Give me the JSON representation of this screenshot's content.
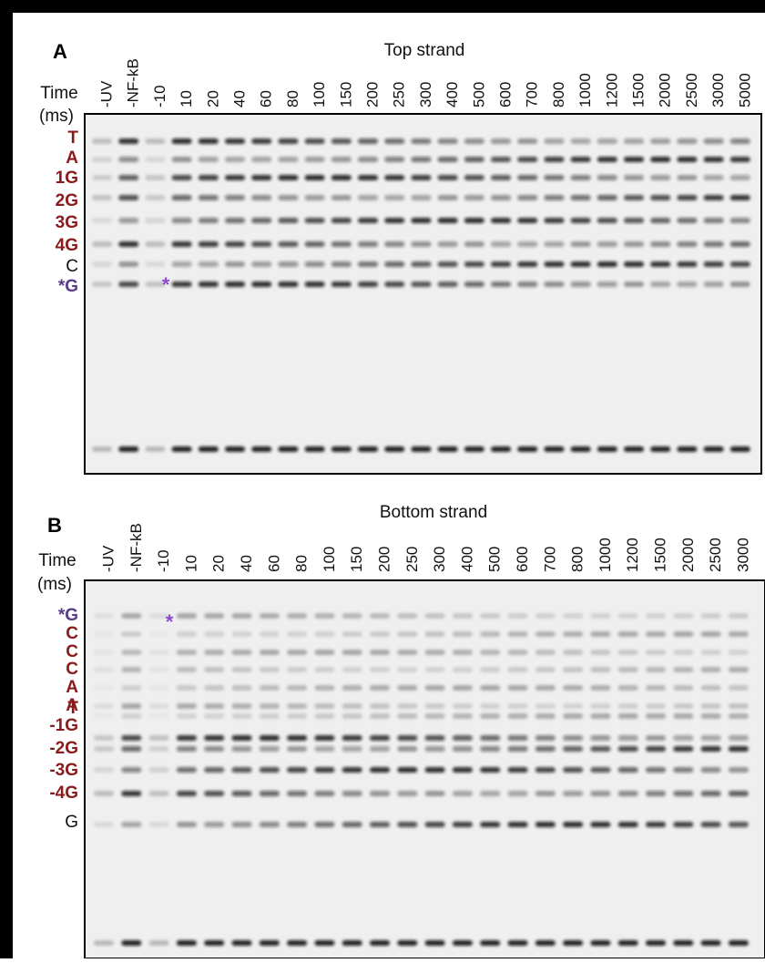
{
  "panels": [
    {
      "label": "A",
      "title": "Top strand",
      "time_label": "Time",
      "time_unit": "(ms)",
      "marker": "*",
      "lanes": [
        "-UV",
        "-NF-kB",
        "-10",
        "10",
        "20",
        "40",
        "60",
        "80",
        "100",
        "150",
        "200",
        "250",
        "300",
        "400",
        "500",
        "600",
        "700",
        "800",
        "1000",
        "1200",
        "1500",
        "2000",
        "2500",
        "3000",
        "5000"
      ],
      "bands": [
        "T",
        "A",
        "1G",
        "2G",
        "3G",
        "4G",
        "C",
        "*G"
      ]
    },
    {
      "label": "B",
      "title": "Bottom strand",
      "time_label": "Time",
      "time_unit": "(ms)",
      "marker": "*",
      "lanes": [
        "-UV",
        "-NF-kB",
        "-10",
        "10",
        "20",
        "40",
        "60",
        "80",
        "100",
        "150",
        "200",
        "250",
        "300",
        "400",
        "500",
        "600",
        "700",
        "800",
        "1000",
        "1200",
        "1500",
        "2000",
        "2500",
        "3000"
      ],
      "bands": [
        "*G",
        "C",
        "C",
        "C",
        "A",
        "A",
        "T",
        "-1G",
        "-2G",
        "-3G",
        "-4G",
        "G"
      ]
    }
  ]
}
